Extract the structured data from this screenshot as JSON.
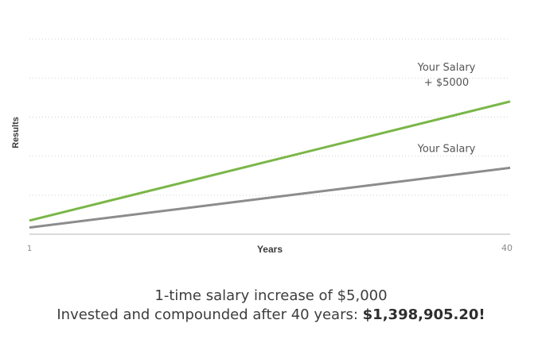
{
  "chart_data": {
    "type": "line",
    "title": "",
    "xlabel": "Years",
    "ylabel": "Results",
    "x_ticks": [
      "1",
      "40"
    ],
    "xlim": [
      1,
      40
    ],
    "ylim": [
      0,
      6
    ],
    "grid": true,
    "grid_style": "dotted-horizontal",
    "series": [
      {
        "name": "Your Salary\n+ $5000",
        "label_lines": [
          "Your Salary",
          "+ $5000"
        ],
        "color": "#7ab648",
        "x": [
          1,
          40
        ],
        "y": [
          0.35,
          3.4
        ]
      },
      {
        "name": "Your Salary",
        "label_lines": [
          "Your Salary"
        ],
        "color": "#8c8c8c",
        "x": [
          1,
          40
        ],
        "y": [
          0.17,
          1.7
        ]
      }
    ]
  },
  "caption": {
    "line1": "1-time salary increase of $5,000",
    "line2_prefix": "Invested and compounded after 40 years: ",
    "line2_amount": "$1,398,905.20!"
  }
}
